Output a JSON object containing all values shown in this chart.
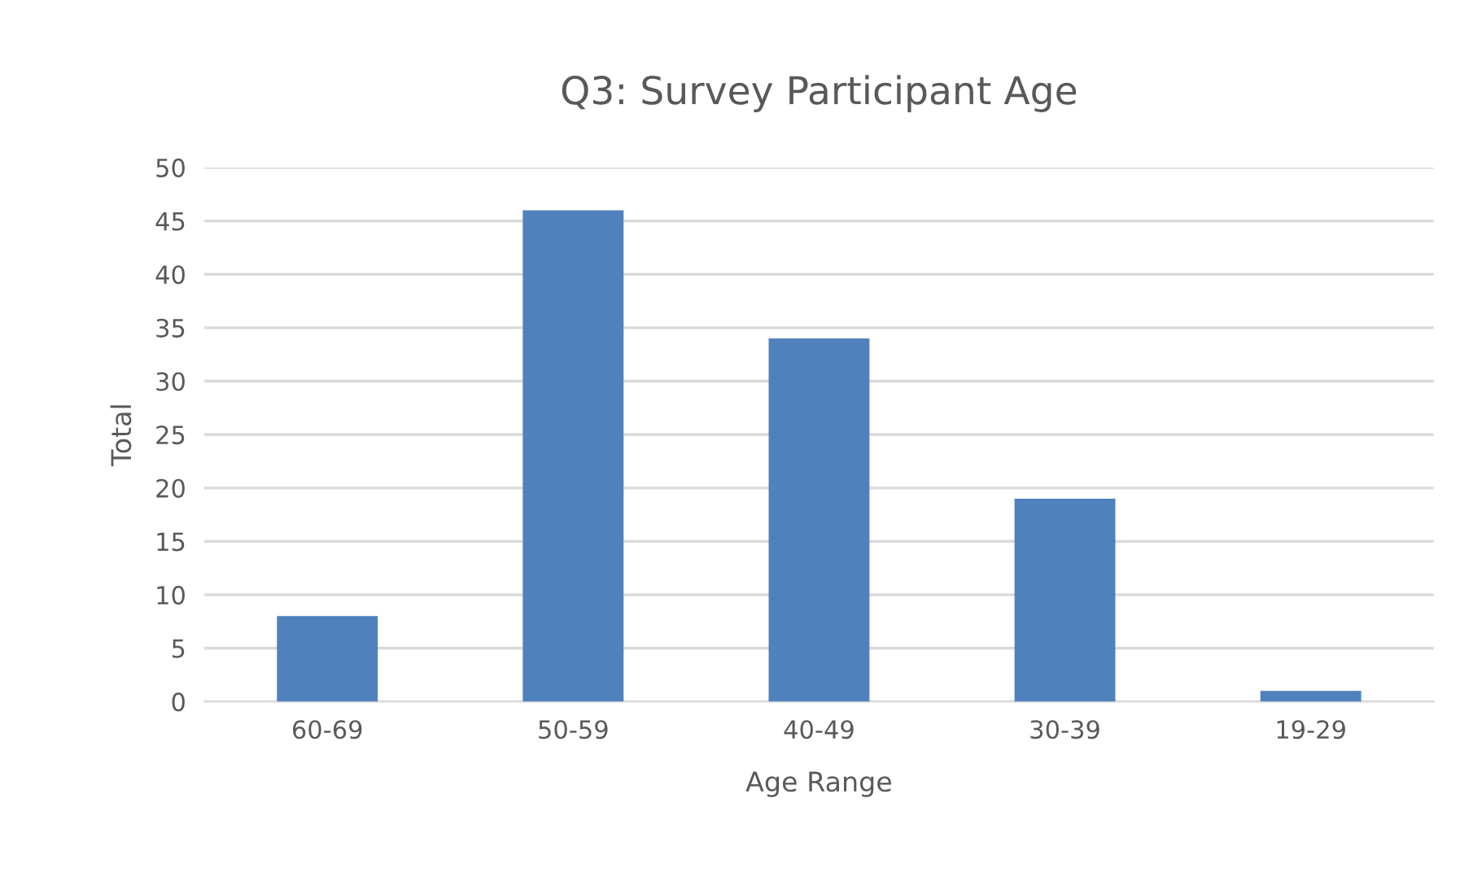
{
  "chart_data": {
    "type": "bar",
    "title": "Q3: Survey Participant Age",
    "xlabel": "Age Range",
    "ylabel": "Total",
    "categories": [
      "60-69",
      "50-59",
      "40-49",
      "30-39",
      "19-29"
    ],
    "values": [
      8,
      46,
      34,
      19,
      1
    ],
    "color": "#4f81bd",
    "ylim": [
      0,
      50
    ],
    "yticks": [
      0,
      5,
      10,
      15,
      20,
      25,
      30,
      35,
      40,
      45,
      50
    ],
    "grid": "y",
    "legend": false
  }
}
